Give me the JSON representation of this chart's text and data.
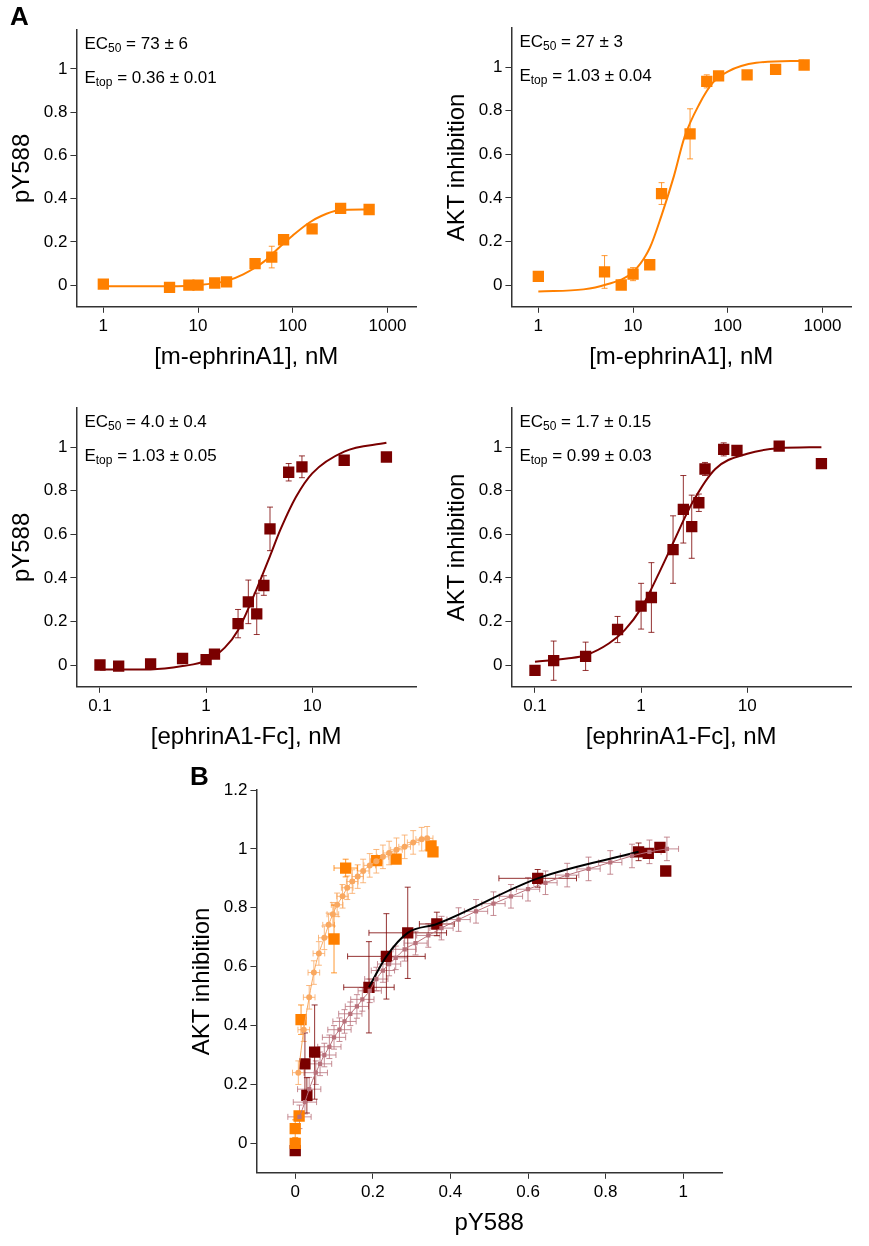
{
  "chart_data": [
    {
      "type": "scatter",
      "title": "A",
      "xlabel": "[m-ephrinA1], nM",
      "ylabel": "pY588",
      "log": "x",
      "xlim": [
        0.52,
        2000
      ],
      "xticks": [
        1,
        10,
        100,
        1000
      ],
      "ylim": [
        -0.1,
        1.18
      ],
      "yticks": [
        0,
        0.2,
        0.4,
        0.6,
        0.8,
        1
      ],
      "annotations": [
        "EC$_{50}$ = 73 ± 6",
        "E$_{top}$ = 0.36 ± 0.01"
      ],
      "series": [
        {
          "type": "scatter",
          "marker": "square",
          "color": "#ff8000",
          "x": [
            1,
            5,
            8,
            10,
            15,
            20,
            40,
            60,
            80,
            160,
            320,
            640
          ],
          "values": [
            0.005,
            -0.01,
            0,
            0,
            0.01,
            0.015,
            0.1,
            0.13,
            0.21,
            0.26,
            0.355,
            0.35
          ],
          "errors": [
            null,
            null,
            null,
            null,
            null,
            null,
            null,
            0.05,
            null,
            null,
            null,
            null
          ]
        },
        {
          "type": "line",
          "marker": "none",
          "color": "#ff8000",
          "x": [
            1,
            5,
            10,
            20,
            30,
            50,
            70,
            100,
            150,
            200,
            300,
            640
          ],
          "values": [
            -0.005,
            -0.005,
            0,
            0.02,
            0.05,
            0.11,
            0.17,
            0.23,
            0.29,
            0.32,
            0.345,
            0.35
          ]
        }
      ]
    },
    {
      "type": "scatter",
      "xlabel": "[m-ephrinA1], nM",
      "ylabel": "AKT inhibition",
      "log": "x",
      "xlim": [
        0.52,
        2000
      ],
      "xticks": [
        1,
        10,
        100,
        1000
      ],
      "ylim": [
        -0.1,
        1.18
      ],
      "yticks": [
        0,
        0.2,
        0.4,
        0.6,
        0.8,
        1
      ],
      "annotations": [
        "EC$_{50}$ = 27 ± 3",
        "E$_{top}$ = 1.03 ± 0.04"
      ],
      "series": [
        {
          "type": "scatter",
          "marker": "square",
          "color": "#ff8000",
          "x": [
            1,
            5,
            7.5,
            10,
            15,
            20,
            40,
            60,
            80,
            160,
            320,
            640
          ],
          "values": [
            0.04,
            0.06,
            0,
            0.05,
            0.093,
            0.42,
            0.694,
            0.935,
            0.96,
            0.965,
            0.99,
            1.01
          ],
          "errors": [
            null,
            0.075,
            null,
            0.03,
            null,
            0.05,
            0.115,
            0.03,
            null,
            null,
            null,
            null
          ]
        },
        {
          "type": "line",
          "marker": "none",
          "color": "#ff8000",
          "x": [
            1,
            3,
            5,
            10,
            15,
            20,
            27,
            35,
            50,
            70,
            100,
            200,
            640
          ],
          "values": [
            -0.03,
            -0.02,
            0,
            0.06,
            0.17,
            0.32,
            0.5,
            0.68,
            0.83,
            0.93,
            0.98,
            1.02,
            1.03
          ]
        }
      ]
    },
    {
      "type": "scatter",
      "xlabel": "[ephrinA1-Fc], nM",
      "ylabel": "pY588",
      "log": "x",
      "xlim": [
        0.06,
        95
      ],
      "xticks": [
        0.1,
        1,
        10
      ],
      "ylim": [
        -0.1,
        1.18
      ],
      "yticks": [
        0,
        0.2,
        0.4,
        0.6,
        0.8,
        1
      ],
      "annotations": [
        "EC$_{50}$ = 4.0 ± 0.4",
        "E$_{top}$ = 1.03 ± 0.05"
      ],
      "series": [
        {
          "type": "scatter",
          "marker": "square",
          "color": "#7a0000",
          "x": [
            0.1,
            0.15,
            0.3,
            0.6,
            1,
            1.2,
            2,
            2.5,
            3,
            3.5,
            4,
            6,
            8,
            20,
            50
          ],
          "values": [
            0,
            -0.005,
            0.005,
            0.03,
            0.025,
            0.05,
            0.19,
            0.29,
            0.235,
            0.365,
            0.625,
            0.885,
            0.91,
            0.94,
            0.955
          ],
          "errors": [
            null,
            null,
            null,
            null,
            null,
            null,
            0.065,
            0.1,
            0.095,
            0.045,
            0.1,
            0.04,
            0.05,
            null,
            null
          ]
        },
        {
          "type": "line",
          "marker": "none",
          "color": "#7a0000",
          "x": [
            0.1,
            0.3,
            0.6,
            1,
            1.5,
            2,
            3,
            4,
            5,
            7,
            10,
            20,
            50
          ],
          "values": [
            -0.02,
            -0.02,
            -0.005,
            0.02,
            0.08,
            0.16,
            0.35,
            0.5,
            0.62,
            0.77,
            0.88,
            0.98,
            1.02
          ]
        }
      ]
    },
    {
      "type": "scatter",
      "xlabel": "[ephrinA1-Fc], nM",
      "ylabel": "AKT inhibition",
      "log": "x",
      "xlim": [
        0.06,
        95
      ],
      "xticks": [
        0.1,
        1,
        10
      ],
      "ylim": [
        -0.1,
        1.18
      ],
      "yticks": [
        0,
        0.2,
        0.4,
        0.6,
        0.8,
        1
      ],
      "annotations": [
        "EC$_{50}$ = 1.7 ± 0.15",
        "E$_{top}$ = 0.99 ± 0.03"
      ],
      "series": [
        {
          "type": "scatter",
          "marker": "square",
          "color": "#7a0000",
          "x": [
            0.1,
            0.15,
            0.3,
            0.6,
            1,
            1.25,
            2,
            2.5,
            3,
            3.5,
            4,
            6,
            8,
            20,
            50
          ],
          "values": [
            -0.025,
            0.02,
            0.04,
            0.163,
            0.27,
            0.31,
            0.53,
            0.715,
            0.635,
            0.745,
            0.9,
            0.99,
            0.985,
            1.005,
            0.925
          ],
          "errors": [
            null,
            0.09,
            0.065,
            0.06,
            0.105,
            0.16,
            0.155,
            0.155,
            0.145,
            0.04,
            0.03,
            0.03,
            null,
            null,
            null
          ]
        },
        {
          "type": "line",
          "marker": "none",
          "color": "#7a0000",
          "x": [
            0.1,
            0.2,
            0.3,
            0.5,
            0.7,
            1,
            1.5,
            2,
            3,
            5,
            10,
            20,
            50
          ],
          "values": [
            0.015,
            0.03,
            0.045,
            0.1,
            0.16,
            0.26,
            0.43,
            0.56,
            0.74,
            0.9,
            0.97,
            0.995,
            1
          ]
        }
      ]
    },
    {
      "type": "scatter",
      "title": "B",
      "xlabel": "pY588",
      "ylabel": "AKT inhibition",
      "xlim": [
        -0.1,
        1.1
      ],
      "xticks": [
        0,
        0.2,
        0.4,
        0.6,
        0.8,
        1
      ],
      "ylim": [
        -0.1,
        1.2
      ],
      "yticks": [
        0,
        0.2,
        0.4,
        0.6,
        0.8,
        1,
        1.2
      ],
      "series": [
        {
          "type": "line",
          "marker": "circle",
          "color": "#f9a860",
          "x": [
            0.008,
            0.022,
            0.036,
            0.048,
            0.061,
            0.075,
            0.086,
            0.097,
            0.108,
            0.122,
            0.134,
            0.147,
            0.161,
            0.175,
            0.192,
            0.209,
            0.226,
            0.242,
            0.261,
            0.282,
            0.304,
            0.326,
            0.34
          ],
          "values": [
            0.24,
            0.386,
            0.496,
            0.58,
            0.645,
            0.698,
            0.742,
            0.778,
            0.81,
            0.839,
            0.868,
            0.889,
            0.906,
            0.925,
            0.944,
            0.958,
            0.973,
            0.986,
            0.997,
            1.007,
            1.022,
            1.033,
            1.036
          ],
          "errors": [
            0.04,
            0.04,
            0.04,
            0.04,
            0.04,
            0.04,
            0.04,
            0.04,
            0.04,
            0.04,
            0.04,
            0.04,
            0.04,
            0.04,
            0.04,
            0.04,
            0.04,
            0.04,
            0.04,
            0.04,
            0.04,
            0.04,
            0.04
          ],
          "xerrors": [
            0.015,
            0.015,
            0.015,
            0.015,
            0.015,
            0.015,
            0.015,
            0.015,
            0.015,
            0.015,
            0.015,
            0.015,
            0.015,
            0.015,
            0.015,
            0.015,
            0.015,
            0.015,
            0.015,
            0.015,
            0.015,
            0.015,
            0.015
          ]
        },
        {
          "type": "line",
          "marker": "square",
          "color": "#b8707a",
          "x": [
            0.011,
            0.025,
            0.036,
            0.053,
            0.064,
            0.075,
            0.088,
            0.1,
            0.114,
            0.127,
            0.142,
            0.159,
            0.173,
            0.192,
            0.209,
            0.226,
            0.242,
            0.259,
            0.282,
            0.31,
            0.343,
            0.377,
            0.421,
            0.466,
            0.511,
            0.556,
            0.6,
            0.645,
            0.701,
            0.756,
            0.812,
            0.868,
            0.913,
            0.958
          ],
          "values": [
            0.09,
            0.14,
            0.184,
            0.24,
            0.27,
            0.3,
            0.328,
            0.36,
            0.386,
            0.414,
            0.44,
            0.465,
            0.489,
            0.518,
            0.558,
            0.587,
            0.609,
            0.63,
            0.659,
            0.68,
            0.706,
            0.731,
            0.76,
            0.788,
            0.814,
            0.839,
            0.863,
            0.885,
            0.911,
            0.932,
            0.954,
            0.976,
            0.99,
            1
          ],
          "errors": [
            0.04,
            0.04,
            0.04,
            0.04,
            0.04,
            0.04,
            0.04,
            0.04,
            0.04,
            0.04,
            0.04,
            0.04,
            0.04,
            0.04,
            0.04,
            0.04,
            0.04,
            0.04,
            0.04,
            0.04,
            0.04,
            0.04,
            0.04,
            0.04,
            0.04,
            0.04,
            0.04,
            0.04,
            0.04,
            0.04,
            0.04,
            0.04,
            0.04,
            0.04
          ],
          "xerrors": [
            0.03,
            0.03,
            0.03,
            0.03,
            0.03,
            0.03,
            0.03,
            0.03,
            0.03,
            0.03,
            0.03,
            0.03,
            0.03,
            0.03,
            0.03,
            0.03,
            0.03,
            0.03,
            0.03,
            0.03,
            0.03,
            0.03,
            0.03,
            0.03,
            0.03,
            0.03,
            0.03,
            0.03,
            0.03,
            0.03,
            0.03,
            0.03,
            0.03,
            0.03
          ]
        },
        {
          "type": "line",
          "marker": "none",
          "color": "#000000",
          "x": [
            0.19,
            0.235,
            0.29,
            0.365,
            0.625,
            0.885
          ],
          "values": [
            0.53,
            0.635,
            0.715,
            0.745,
            0.9,
            0.99
          ]
        },
        {
          "type": "scatter",
          "marker": "square",
          "color": "#ff8000",
          "x": [
            0,
            0,
            0.01,
            0.015,
            0.1,
            0.13,
            0.21,
            0.26,
            0.355,
            0.35
          ],
          "values": [
            0,
            0.05,
            0.093,
            0.42,
            0.694,
            0.935,
            0.96,
            0.965,
            0.99,
            1.01
          ],
          "errors": [
            null,
            0.03,
            null,
            0.05,
            0.115,
            0.03,
            null,
            null,
            null,
            null
          ],
          "xerrors": [
            null,
            null,
            null,
            null,
            null,
            0.03,
            null,
            null,
            null,
            null
          ]
        },
        {
          "type": "scatter",
          "marker": "square",
          "color": "#7a0000",
          "x": [
            0,
            0.03,
            0.025,
            0.05,
            0.19,
            0.29,
            0.235,
            0.365,
            0.625,
            0.885,
            0.91,
            0.94,
            0.955
          ],
          "values": [
            -0.025,
            0.163,
            0.27,
            0.31,
            0.53,
            0.715,
            0.635,
            0.745,
            0.9,
            0.99,
            0.985,
            1.005,
            0.925
          ],
          "errors": [
            null,
            0.06,
            0.105,
            0.16,
            0.155,
            0.155,
            0.145,
            0.04,
            0.03,
            0.03,
            null,
            null,
            null
          ],
          "xerrors": [
            null,
            null,
            null,
            null,
            0.065,
            0.1,
            0.1,
            0.045,
            0.1,
            null,
            null,
            null,
            null
          ]
        }
      ]
    }
  ]
}
